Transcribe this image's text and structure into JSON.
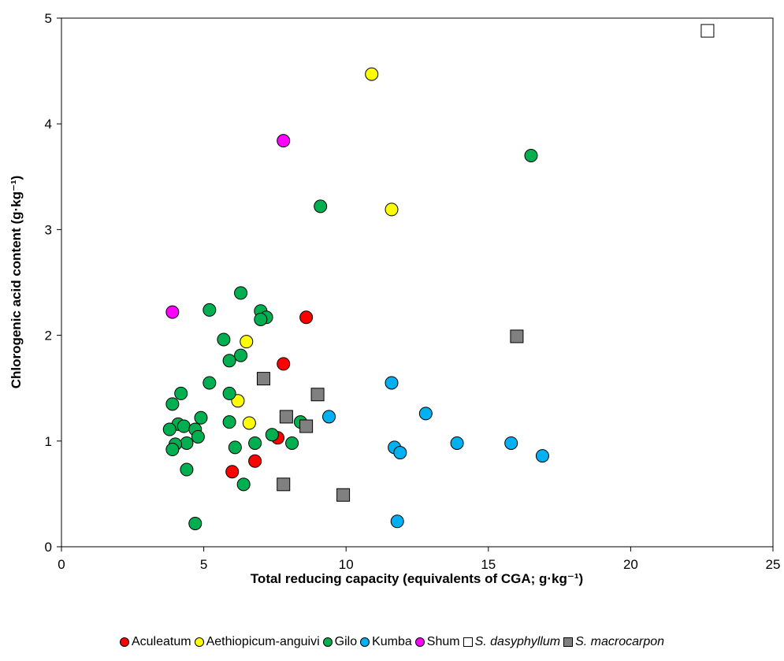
{
  "chart_data": {
    "type": "scatter",
    "xlabel": "Total reducing capacity (equivalents of CGA; g·kg⁻¹)",
    "ylabel": "Chlorogenic acid content  (g·kg⁻¹)",
    "xlim": [
      0,
      25
    ],
    "ylim": [
      0,
      5
    ],
    "x_ticks": [
      "0",
      "5",
      "10",
      "15",
      "20",
      "25"
    ],
    "y_ticks": [
      "0",
      "1",
      "2",
      "3",
      "4",
      "5"
    ],
    "grid": false,
    "legend_position": "bottom",
    "series": [
      {
        "name": "Aculeatum",
        "marker": "circle",
        "color": "#ff0000",
        "points": [
          [
            8.6,
            2.17
          ],
          [
            7.8,
            1.73
          ],
          [
            7.6,
            1.03
          ],
          [
            6.8,
            0.81
          ],
          [
            6.0,
            0.71
          ]
        ]
      },
      {
        "name": "Aethiopicum-anguivi",
        "marker": "circle",
        "color": "#ffff00",
        "points": [
          [
            10.9,
            4.47
          ],
          [
            11.6,
            3.19
          ],
          [
            6.5,
            1.94
          ],
          [
            6.2,
            1.38
          ],
          [
            6.6,
            1.17
          ]
        ]
      },
      {
        "name": "Gilo",
        "marker": "circle",
        "color": "#00b050",
        "points": [
          [
            16.5,
            3.7
          ],
          [
            9.1,
            3.22
          ],
          [
            6.3,
            2.4
          ],
          [
            5.2,
            2.24
          ],
          [
            7.0,
            2.23
          ],
          [
            7.2,
            2.17
          ],
          [
            7.0,
            2.15
          ],
          [
            5.7,
            1.96
          ],
          [
            6.3,
            1.81
          ],
          [
            5.9,
            1.76
          ],
          [
            5.2,
            1.55
          ],
          [
            5.9,
            1.45
          ],
          [
            4.2,
            1.45
          ],
          [
            3.9,
            1.35
          ],
          [
            4.9,
            1.22
          ],
          [
            5.9,
            1.18
          ],
          [
            8.4,
            1.18
          ],
          [
            4.1,
            1.16
          ],
          [
            4.3,
            1.14
          ],
          [
            3.8,
            1.11
          ],
          [
            4.7,
            1.11
          ],
          [
            7.4,
            1.06
          ],
          [
            4.8,
            1.04
          ],
          [
            8.1,
            0.98
          ],
          [
            6.8,
            0.98
          ],
          [
            4.4,
            0.98
          ],
          [
            4.0,
            0.97
          ],
          [
            6.1,
            0.94
          ],
          [
            3.9,
            0.92
          ],
          [
            4.4,
            0.73
          ],
          [
            6.4,
            0.59
          ],
          [
            4.7,
            0.22
          ]
        ]
      },
      {
        "name": "Kumba",
        "marker": "circle",
        "color": "#00b0f0",
        "points": [
          [
            11.6,
            1.55
          ],
          [
            12.8,
            1.26
          ],
          [
            9.4,
            1.23
          ],
          [
            13.9,
            0.98
          ],
          [
            15.8,
            0.98
          ],
          [
            11.7,
            0.94
          ],
          [
            11.9,
            0.89
          ],
          [
            16.9,
            0.86
          ],
          [
            11.8,
            0.24
          ]
        ]
      },
      {
        "name": "Shum",
        "marker": "circle",
        "color": "#ff00ff",
        "points": [
          [
            7.8,
            3.84
          ],
          [
            3.9,
            2.22
          ]
        ]
      },
      {
        "name": "S. dasyphyllum",
        "marker": "square",
        "color": "#ffffff",
        "italic": true,
        "points": [
          [
            22.7,
            4.88
          ]
        ]
      },
      {
        "name": "S. macrocarpon",
        "marker": "square",
        "color": "#808080",
        "italic": true,
        "points": [
          [
            16.0,
            1.99
          ],
          [
            7.1,
            1.59
          ],
          [
            9.0,
            1.44
          ],
          [
            7.9,
            1.23
          ],
          [
            8.6,
            1.14
          ],
          [
            7.8,
            0.59
          ],
          [
            9.9,
            0.49
          ]
        ]
      }
    ]
  }
}
